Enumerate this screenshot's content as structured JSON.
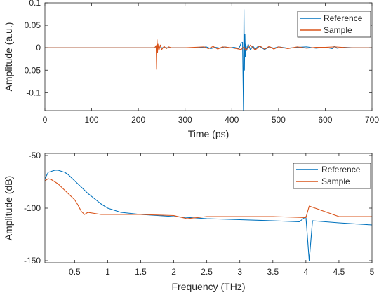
{
  "colors": {
    "reference": "#0072BD",
    "sample": "#D95319",
    "axis": "#262626",
    "background": "#ffffff"
  },
  "chart_data": [
    {
      "type": "line",
      "xlabel": "Time (ps)",
      "ylabel": "Amplitude (a.u.)",
      "xlim": [
        0,
        700
      ],
      "ylim": [
        -0.14,
        0.1
      ],
      "xticks": [
        0,
        100,
        200,
        300,
        400,
        500,
        600,
        700
      ],
      "xtick_labels": [
        "0",
        "100",
        "200",
        "300",
        "400",
        "500",
        "600",
        "700"
      ],
      "yticks": [
        0.1,
        0.05,
        0,
        -0.05,
        -0.1
      ],
      "ytick_labels": [
        "0.1",
        "0.05",
        "0",
        "-0.05",
        "-0.1"
      ],
      "grid": false,
      "legend_position": "top-right",
      "series": [
        {
          "name": "Reference",
          "color": "#0072BD",
          "x": [
            0,
            100,
            200,
            330,
            345,
            355,
            365,
            375,
            385,
            395,
            405,
            415,
            420,
            423,
            425,
            426,
            427,
            428,
            429,
            430,
            432,
            435,
            440,
            445,
            450,
            455,
            460,
            470,
            480,
            490,
            500,
            520,
            540,
            560,
            580,
            600,
            615,
            620,
            625,
            640,
            660,
            700
          ],
          "y": [
            0,
            0,
            0,
            0,
            0.002,
            -0.002,
            0.001,
            -0.001,
            0.002,
            0,
            0.001,
            -0.002,
            0.01,
            0.012,
            -0.14,
            0.085,
            -0.05,
            0.03,
            -0.02,
            0.008,
            -0.006,
            0.008,
            -0.005,
            0.004,
            -0.003,
            0.002,
            0.003,
            -0.004,
            0.002,
            -0.001,
            0.002,
            -0.001,
            0.001,
            0.002,
            -0.001,
            0.001,
            -0.002,
            0.004,
            -0.001,
            0.001,
            0,
            0
          ]
        },
        {
          "name": "Sample",
          "color": "#D95319",
          "x": [
            0,
            100,
            200,
            235,
            238,
            239,
            240,
            241,
            242,
            244,
            247,
            250,
            255,
            260,
            265,
            270,
            300,
            340,
            350,
            360,
            370,
            380,
            400,
            420,
            426,
            430,
            440,
            450,
            460,
            470,
            480,
            490,
            500,
            520,
            540,
            560,
            580,
            600,
            620,
            650,
            700
          ],
          "y": [
            0,
            0,
            0,
            0,
            0.005,
            -0.048,
            0.018,
            -0.01,
            0.008,
            -0.006,
            0.006,
            -0.004,
            0.003,
            -0.002,
            0.002,
            0,
            0,
            0.002,
            -0.002,
            0.003,
            -0.003,
            0.002,
            0,
            -0.004,
            0.002,
            -0.006,
            0.006,
            -0.005,
            0.004,
            -0.003,
            0.003,
            -0.003,
            0.002,
            -0.002,
            0.002,
            -0.001,
            0.001,
            0.001,
            0.002,
            0,
            0
          ]
        }
      ]
    },
    {
      "type": "line",
      "xlabel": "Frequency (THz)",
      "ylabel": "Amplitude (dB)",
      "xlim": [
        0.05,
        5
      ],
      "ylim": [
        -152,
        -48
      ],
      "xticks": [
        0.5,
        1,
        1.5,
        2,
        2.5,
        3,
        3.5,
        4,
        4.5,
        5
      ],
      "xtick_labels": [
        "0.5",
        "1",
        "1.5",
        "2",
        "2.5",
        "3",
        "3.5",
        "4",
        "4.5",
        "5"
      ],
      "yticks": [
        -50,
        -100,
        -150
      ],
      "ytick_labels": [
        "-50",
        "-100",
        "-150"
      ],
      "grid": false,
      "legend_position": "top-right",
      "series": [
        {
          "name": "Reference",
          "color": "#0072BD",
          "x": [
            0.05,
            0.1,
            0.15,
            0.2,
            0.25,
            0.3,
            0.35,
            0.4,
            0.5,
            0.6,
            0.7,
            0.8,
            0.9,
            1.0,
            1.2,
            1.5,
            2.0,
            2.5,
            3.0,
            3.5,
            3.9,
            4.0,
            4.05,
            4.1,
            4.5,
            5.0
          ],
          "y": [
            -72,
            -66,
            -65,
            -64,
            -64,
            -65,
            -66,
            -68,
            -74,
            -80,
            -86,
            -91,
            -96,
            -100,
            -104,
            -106,
            -108,
            -110,
            -111,
            -112,
            -113,
            -108,
            -150,
            -112,
            -114,
            -116
          ]
        },
        {
          "name": "Sample",
          "color": "#D95319",
          "x": [
            0.05,
            0.1,
            0.15,
            0.2,
            0.25,
            0.3,
            0.35,
            0.4,
            0.5,
            0.55,
            0.6,
            0.65,
            0.7,
            0.8,
            0.9,
            1.0,
            1.5,
            2.0,
            2.2,
            2.5,
            3.0,
            3.5,
            4.0,
            4.05,
            4.5,
            5.0
          ],
          "y": [
            -74,
            -72,
            -73,
            -75,
            -77,
            -80,
            -83,
            -86,
            -92,
            -97,
            -103,
            -106,
            -104,
            -105,
            -106,
            -106,
            -106,
            -107,
            -110,
            -108,
            -108,
            -108,
            -109,
            -98,
            -108,
            -108
          ]
        }
      ]
    }
  ]
}
